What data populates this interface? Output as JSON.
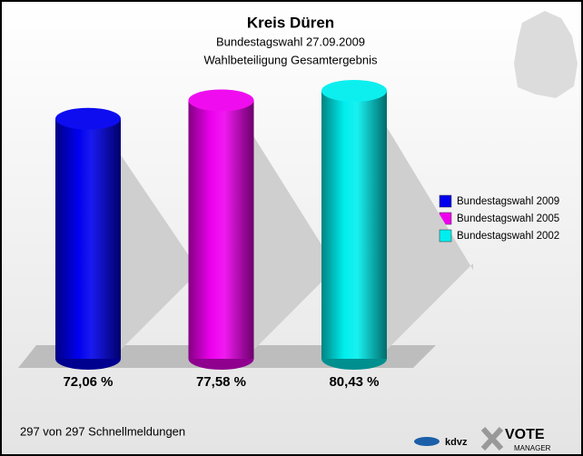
{
  "chart_data": {
    "type": "bar3d",
    "title": "Kreis Düren",
    "subtitle": "Bundestagswahl 27.09.2009",
    "subtitle2": "Wahlbeteiligung Gesamtergebnis",
    "series": [
      {
        "name": "Bundestagswahl 2009",
        "color": "#0000ee",
        "values": [
          72.06
        ],
        "value_labels": [
          "72,06 %"
        ]
      },
      {
        "name": "Bundestagswahl 2005",
        "color": "#ee00ee",
        "values": [
          77.58
        ],
        "value_labels": [
          "77,58 %"
        ]
      },
      {
        "name": "Bundestagswahl 2002",
        "color": "#00eeee",
        "values": [
          80.43
        ],
        "value_labels": [
          "80,43 %"
        ]
      }
    ],
    "footer": "297 von 297 Schnellmeldungen",
    "logos": [
      "kdvz",
      "VOTE",
      "MANAGER"
    ]
  }
}
